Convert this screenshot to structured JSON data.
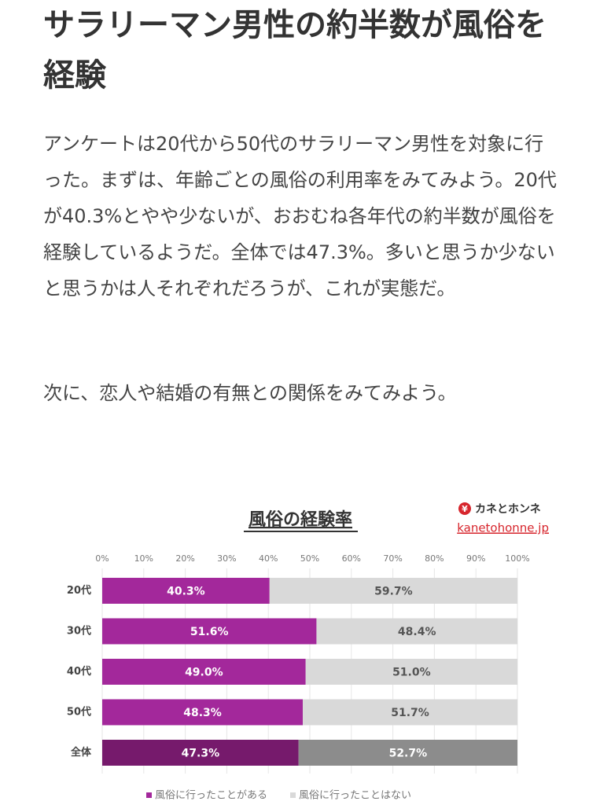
{
  "article": {
    "title": "サラリーマン男性の約半数が風俗を経験",
    "paragraphs": [
      "アンケートは20代から50代のサラリーマン男性を対象に行った。まずは、年齢ごとの風俗の利用率をみてみよう。20代が40.3%とやや少ないが、おおむね各年代の約半数が風俗を経験しているようだ。全体では47.3%。多いと思うか少ないと思うかは人それぞれだろうが、これが実態だ。",
      "次に、恋人や結婚の有無との関係をみてみよう。"
    ]
  },
  "chart_data": {
    "type": "stacked-barh",
    "title": "風俗の経験率",
    "source": {
      "mark": "¥",
      "name": "カネとホンネ",
      "url": "kanetohonne.jp"
    },
    "categories": [
      "20代",
      "30代",
      "40代",
      "50代",
      "全体"
    ],
    "series": [
      {
        "name": "風俗に行ったことがある",
        "color": "#a3289b",
        "colors": [
          "#a3289b",
          "#a3289b",
          "#a3289b",
          "#a3289b",
          "#761a6c"
        ],
        "values": [
          40.3,
          51.6,
          49.0,
          48.3,
          47.3
        ],
        "value_labels": [
          "40.3%",
          "51.6%",
          "49.0%",
          "48.3%",
          "47.3%"
        ]
      },
      {
        "name": "風俗に行ったことはない",
        "color": "#d9d9d9",
        "colors": [
          "#d9d9d9",
          "#d9d9d9",
          "#d9d9d9",
          "#d9d9d9",
          "#8c8c8c"
        ],
        "values": [
          59.7,
          48.4,
          51.0,
          51.7,
          52.7
        ],
        "value_labels": [
          "59.7%",
          "48.4%",
          "51.0%",
          "51.7%",
          "52.7%"
        ]
      }
    ],
    "xlim": [
      0,
      100
    ],
    "xticks": [
      {
        "value": 0,
        "label": "0%"
      },
      {
        "value": 10,
        "label": "10%"
      },
      {
        "value": 20,
        "label": "20%"
      },
      {
        "value": 30,
        "label": "30%"
      },
      {
        "value": 40,
        "label": "40%"
      },
      {
        "value": 50,
        "label": "50%"
      },
      {
        "value": 60,
        "label": "60%"
      },
      {
        "value": 70,
        "label": "70%"
      },
      {
        "value": 80,
        "label": "80%"
      },
      {
        "value": 90,
        "label": "90%"
      },
      {
        "value": 100,
        "label": "100%"
      }
    ],
    "grid": true
  }
}
